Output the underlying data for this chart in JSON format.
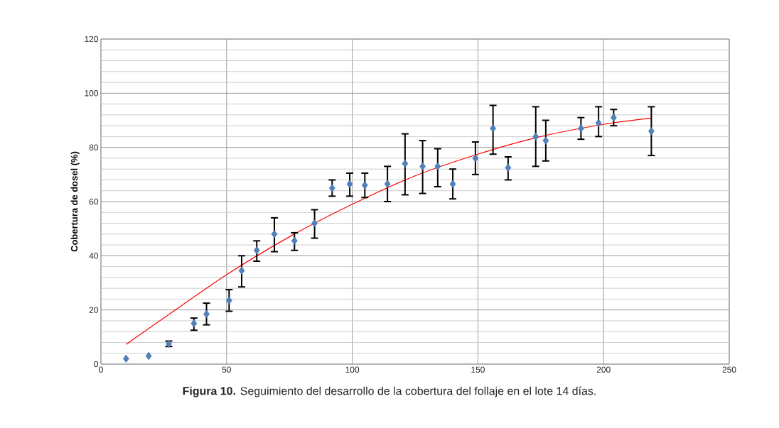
{
  "chart_data": {
    "type": "scatter",
    "ylabel": "Cobertura de dosel (%)",
    "annotations": [
      "**Figura 10.** Seguimiento del desarrollo de la cobertura del follaje en el lote 14 días."
    ],
    "xlim": [
      0,
      250
    ],
    "xticks": [
      0,
      50,
      100,
      150,
      200,
      250
    ],
    "ylim": [
      0,
      120
    ],
    "yticks": [
      0,
      20,
      40,
      60,
      80,
      100,
      120
    ],
    "grid": true,
    "marker": "diamond",
    "series": [
      {
        "color": "#4f81bd",
        "x": [
          10,
          19,
          27,
          37,
          42,
          51,
          56,
          62,
          69,
          77,
          85,
          92,
          99,
          105,
          114,
          121,
          128,
          134,
          140,
          149,
          156,
          162,
          173,
          177,
          191,
          198,
          204,
          219
        ],
        "values": [
          2,
          3,
          7.5,
          15,
          18.5,
          23.5,
          34.5,
          42,
          48,
          45.5,
          52,
          65,
          66.5,
          66,
          66.5,
          74,
          73,
          73,
          66.5,
          76,
          87,
          72.5,
          84,
          82.5,
          87,
          89,
          91,
          86
        ],
        "errors": [
          null,
          null,
          [
            6.5,
            8.5
          ],
          [
            12.5,
            17
          ],
          [
            14.5,
            22.5
          ],
          [
            19.5,
            27.5
          ],
          [
            28.5,
            40
          ],
          [
            38,
            45.5
          ],
          [
            41.5,
            54
          ],
          [
            42,
            48.5
          ],
          [
            46.5,
            57
          ],
          [
            62,
            68
          ],
          [
            62,
            70.5
          ],
          [
            61.5,
            70.5
          ],
          [
            60,
            73
          ],
          [
            62.5,
            85
          ],
          [
            63,
            82.5
          ],
          [
            65.5,
            79.5
          ],
          [
            61,
            72
          ],
          [
            70,
            82
          ],
          [
            77.5,
            95.5
          ],
          [
            68,
            76.5
          ],
          [
            73,
            95
          ],
          [
            75,
            90
          ],
          [
            83,
            91
          ],
          [
            84,
            95
          ],
          [
            88,
            94
          ],
          [
            77,
            95
          ]
        ]
      },
      {
        "type": "line",
        "color": "#ff0000",
        "marker": "none",
        "x": [
          10,
          25,
          50,
          75,
          100,
          125,
          150,
          175,
          200,
          219
        ],
        "values": [
          7.3,
          17,
          33,
          47,
          59,
          69.5,
          77.5,
          84,
          88.5,
          90.8
        ]
      }
    ]
  }
}
